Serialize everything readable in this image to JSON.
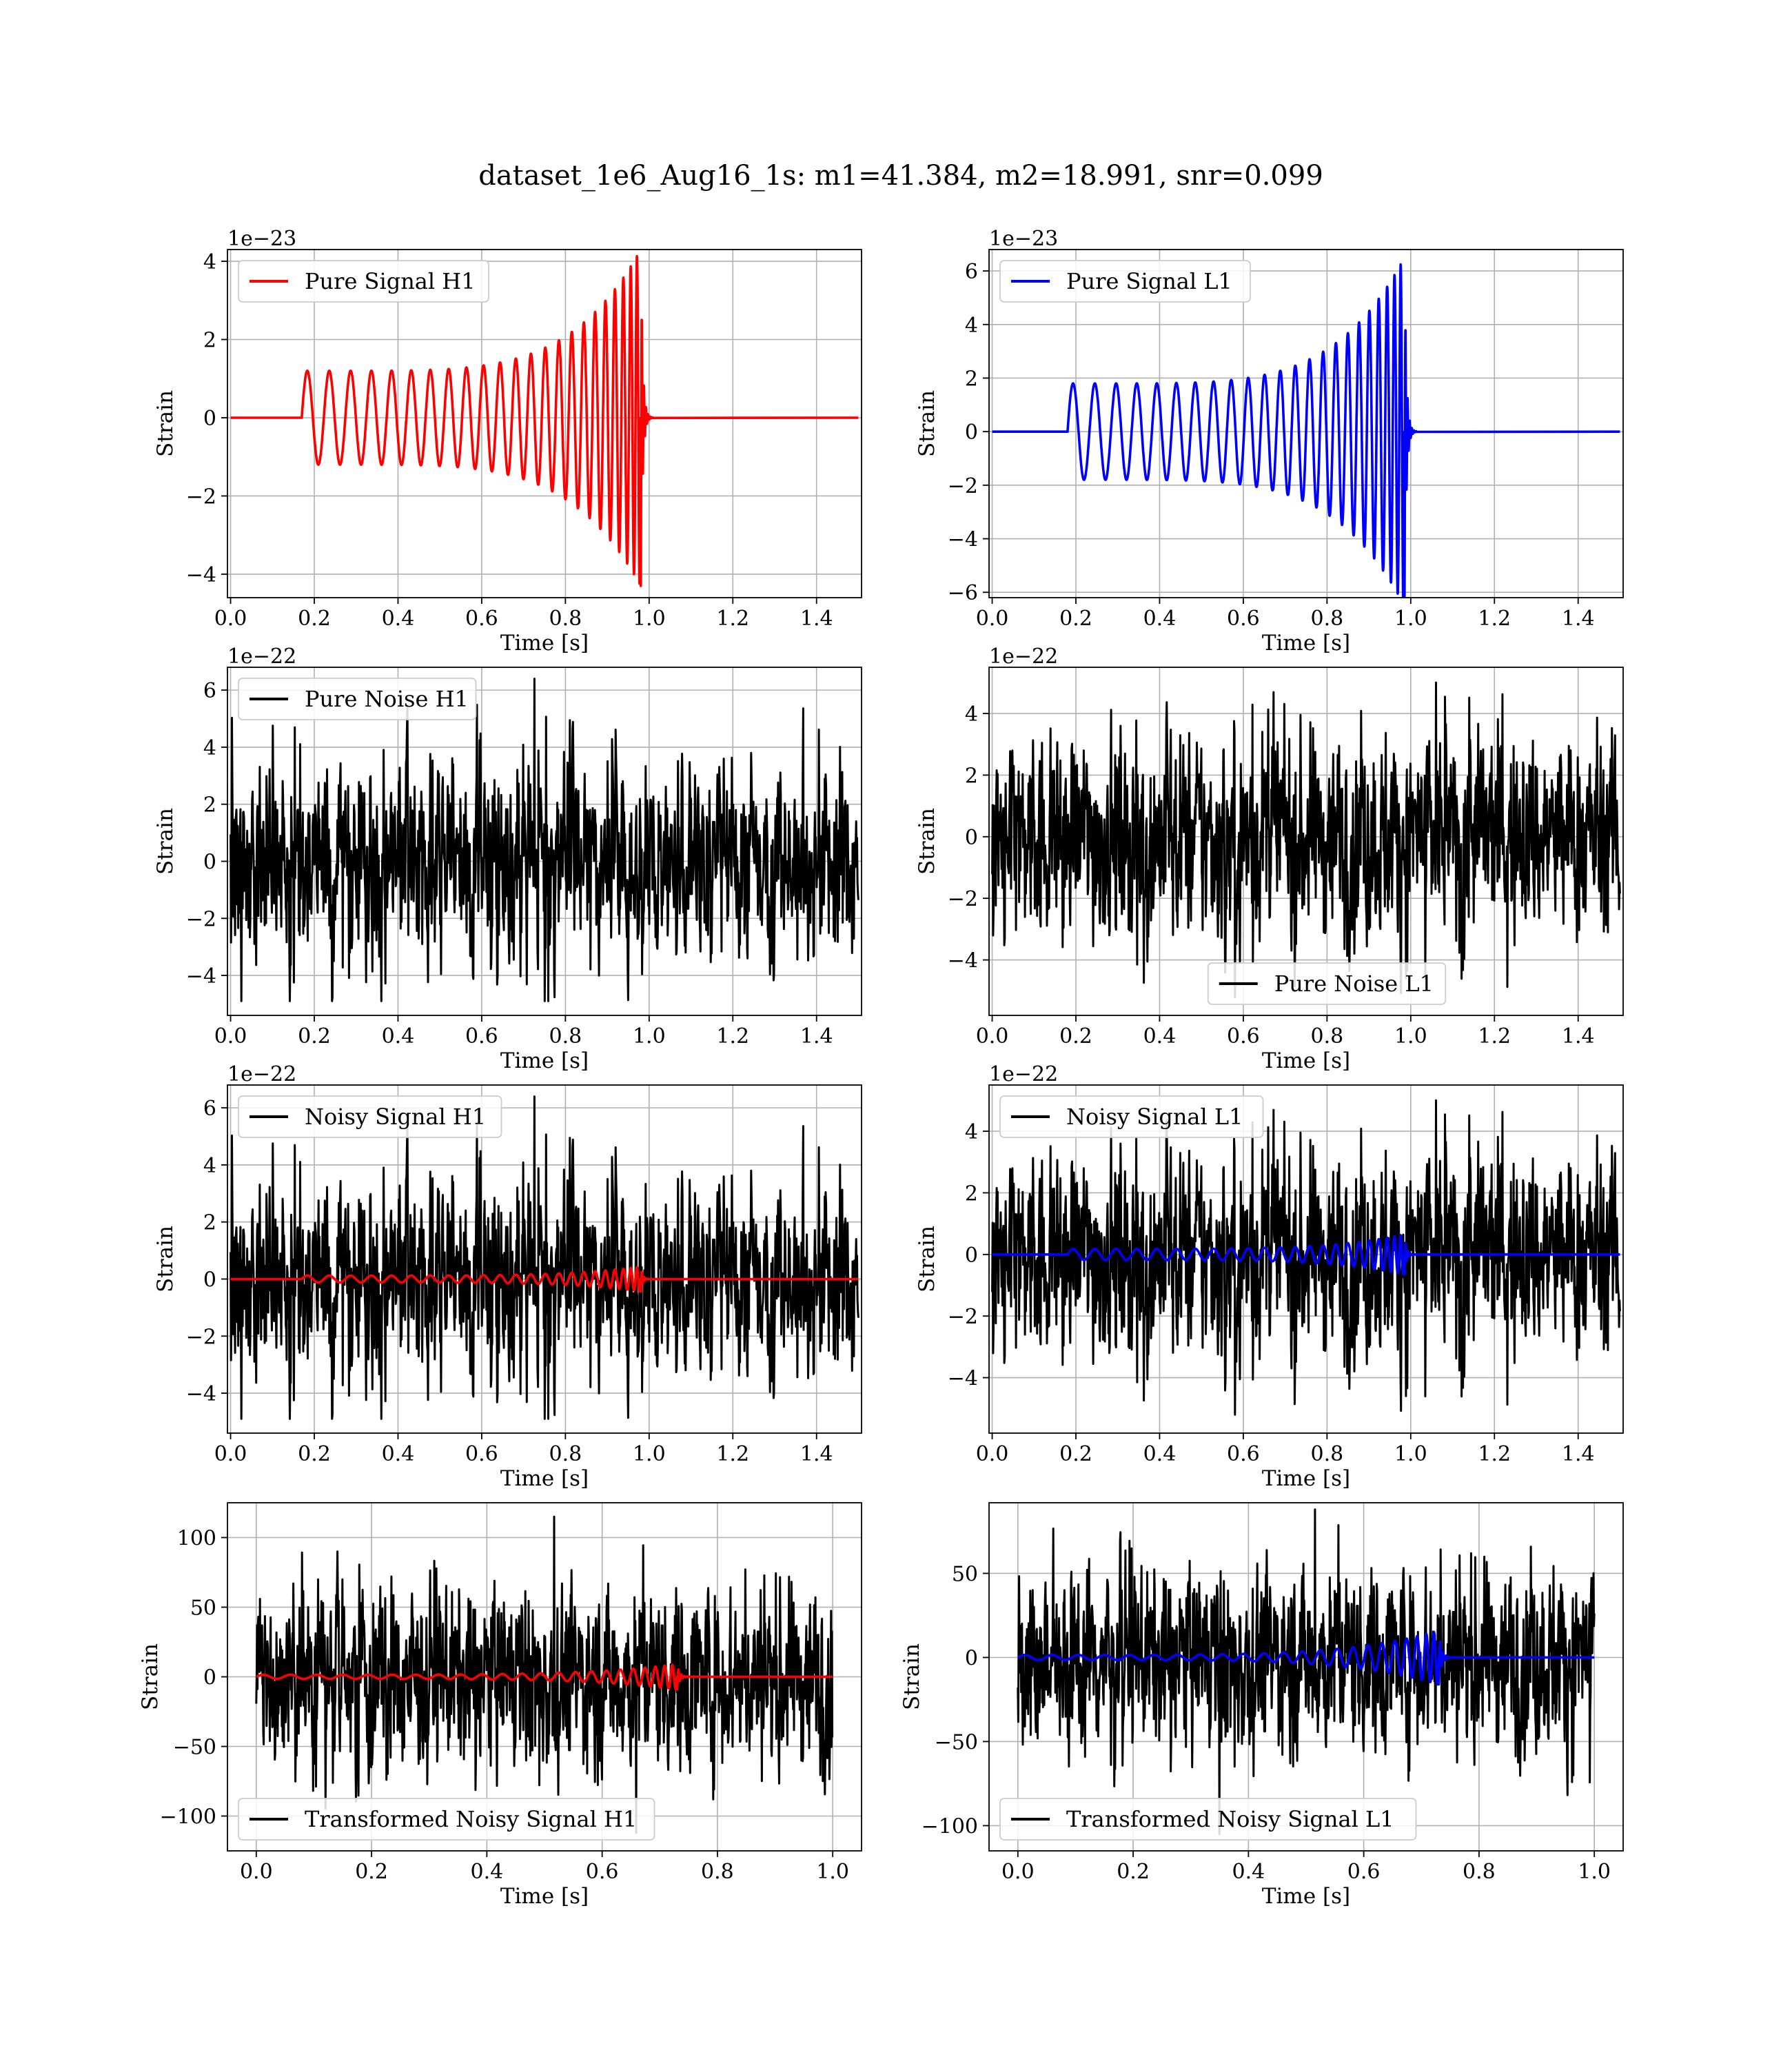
{
  "figure": {
    "title": "dataset_1e6_Aug16_1s: m1=41.384, m2=18.991, snr=0.099"
  },
  "colors": {
    "h1_signal": "#ff0000",
    "l1_signal": "#0000ff",
    "noise": "#000000",
    "grid": "#b0b0b0"
  },
  "chart_data": [
    {
      "id": "pure-signal-h1",
      "type": "line",
      "xlabel": "Time [s]",
      "ylabel": "Strain",
      "offset_text": "1e−23",
      "xlim": [
        -0.0075,
        1.5075
      ],
      "ylim": [
        -4.6,
        4.3
      ],
      "xticks": [
        0.0,
        0.2,
        0.4,
        0.6,
        0.8,
        1.0,
        1.2,
        1.4
      ],
      "yticks": [
        -4,
        -2,
        0,
        2,
        4
      ],
      "grid": true,
      "legend_position": "upper left",
      "series": [
        {
          "name": "Pure Signal H1",
          "color": "#ff0000",
          "kind": "chirp",
          "t_start": 0.17,
          "t_merge": 0.98,
          "t_end": 1.5,
          "amp_start": 1.2,
          "amp_peak": 4.3,
          "cycles": 23
        }
      ]
    },
    {
      "id": "pure-signal-l1",
      "type": "line",
      "xlabel": "Time [s]",
      "ylabel": "Strain",
      "offset_text": "1e−23",
      "xlim": [
        -0.0075,
        1.5075
      ],
      "ylim": [
        -6.2,
        6.8
      ],
      "xticks": [
        0.0,
        0.2,
        0.4,
        0.6,
        0.8,
        1.0,
        1.2,
        1.4
      ],
      "yticks": [
        -6,
        -4,
        -2,
        0,
        2,
        4,
        6
      ],
      "grid": true,
      "legend_position": "upper left",
      "series": [
        {
          "name": "Pure Signal L1",
          "color": "#0000ff",
          "kind": "chirp",
          "t_start": 0.18,
          "t_merge": 0.985,
          "t_end": 1.5,
          "amp_start": 1.8,
          "amp_peak": 6.5,
          "cycles": 23
        }
      ]
    },
    {
      "id": "pure-noise-h1",
      "type": "line",
      "xlabel": "Time [s]",
      "ylabel": "Strain",
      "offset_text": "1e−22",
      "xlim": [
        -0.0075,
        1.5075
      ],
      "ylim": [
        -5.4,
        6.8
      ],
      "xticks": [
        0.0,
        0.2,
        0.4,
        0.6,
        0.8,
        1.0,
        1.2,
        1.4
      ],
      "yticks": [
        -4,
        -2,
        0,
        2,
        4,
        6
      ],
      "grid": true,
      "legend_position": "upper left",
      "series": [
        {
          "name": "Pure Noise H1",
          "color": "#000000",
          "kind": "noise",
          "t_start": 0.0,
          "t_end": 1.5,
          "sigma": 1.6,
          "max": 6.4,
          "min": -4.9,
          "seed": 11
        }
      ]
    },
    {
      "id": "pure-noise-l1",
      "type": "line",
      "xlabel": "Time [s]",
      "ylabel": "Strain",
      "offset_text": "1e−22",
      "xlim": [
        -0.0075,
        1.5075
      ],
      "ylim": [
        -5.8,
        5.5
      ],
      "xticks": [
        0.0,
        0.2,
        0.4,
        0.6,
        0.8,
        1.0,
        1.2,
        1.4
      ],
      "yticks": [
        -4,
        -2,
        0,
        2,
        4
      ],
      "grid": true,
      "legend_position": "lower center",
      "series": [
        {
          "name": "Pure Noise L1",
          "color": "#000000",
          "kind": "noise",
          "t_start": 0.0,
          "t_end": 1.5,
          "sigma": 1.55,
          "max": 5.0,
          "min": -5.2,
          "seed": 23
        }
      ]
    },
    {
      "id": "noisy-signal-h1",
      "type": "line",
      "xlabel": "Time [s]",
      "ylabel": "Strain",
      "offset_text": "1e−22",
      "xlim": [
        -0.0075,
        1.5075
      ],
      "ylim": [
        -5.4,
        6.8
      ],
      "xticks": [
        0.0,
        0.2,
        0.4,
        0.6,
        0.8,
        1.0,
        1.2,
        1.4
      ],
      "yticks": [
        -4,
        -2,
        0,
        2,
        4,
        6
      ],
      "grid": true,
      "legend_position": "upper left",
      "series": [
        {
          "name": "Noisy Signal H1",
          "color": "#000000",
          "kind": "noise",
          "t_start": 0.0,
          "t_end": 1.5,
          "sigma": 1.6,
          "max": 6.4,
          "min": -4.9,
          "seed": 11
        },
        {
          "name": "",
          "color": "#ff0000",
          "kind": "chirp",
          "t_start": 0.17,
          "t_merge": 0.98,
          "t_end": 1.5,
          "amp_start": 0.12,
          "amp_peak": 0.43,
          "cycles": 23
        }
      ]
    },
    {
      "id": "noisy-signal-l1",
      "type": "line",
      "xlabel": "Time [s]",
      "ylabel": "Strain",
      "offset_text": "1e−22",
      "xlim": [
        -0.0075,
        1.5075
      ],
      "ylim": [
        -5.8,
        5.5
      ],
      "xticks": [
        0.0,
        0.2,
        0.4,
        0.6,
        0.8,
        1.0,
        1.2,
        1.4
      ],
      "yticks": [
        -4,
        -2,
        0,
        2,
        4
      ],
      "grid": true,
      "legend_position": "upper left",
      "series": [
        {
          "name": "Noisy Signal L1",
          "color": "#000000",
          "kind": "noise",
          "t_start": 0.0,
          "t_end": 1.5,
          "sigma": 1.55,
          "max": 5.0,
          "min": -5.2,
          "seed": 23
        },
        {
          "name": "",
          "color": "#0000ff",
          "kind": "chirp",
          "t_start": 0.18,
          "t_merge": 0.985,
          "t_end": 1.5,
          "amp_start": 0.18,
          "amp_peak": 0.65,
          "cycles": 23
        }
      ]
    },
    {
      "id": "transformed-noisy-signal-h1",
      "type": "line",
      "xlabel": "Time [s]",
      "ylabel": "Strain",
      "offset_text": "",
      "xlim": [
        -0.05,
        1.05
      ],
      "ylim": [
        -125,
        125
      ],
      "xticks": [
        0.0,
        0.2,
        0.4,
        0.6,
        0.8,
        1.0
      ],
      "yticks": [
        -100,
        -50,
        0,
        50,
        100
      ],
      "grid": true,
      "legend_position": "lower left",
      "series": [
        {
          "name": "Transformed Noisy Signal H1",
          "color": "#000000",
          "kind": "noise",
          "t_start": 0.0,
          "t_end": 1.0,
          "sigma": 30,
          "max": 115,
          "min": -112,
          "seed": 37
        },
        {
          "name": "",
          "color": "#ff0000",
          "kind": "chirp",
          "t_start": 0.0,
          "t_merge": 0.73,
          "t_end": 1.0,
          "amp_start": 1.5,
          "amp_peak": 9,
          "cycles": 23
        }
      ]
    },
    {
      "id": "transformed-noisy-signal-l1",
      "type": "line",
      "xlabel": "Time [s]",
      "ylabel": "Strain",
      "offset_text": "",
      "xlim": [
        -0.05,
        1.05
      ],
      "ylim": [
        -115,
        92
      ],
      "xticks": [
        0.0,
        0.2,
        0.4,
        0.6,
        0.8,
        1.0
      ],
      "yticks": [
        -100,
        -50,
        0,
        50
      ],
      "grid": true,
      "legend_position": "lower left",
      "series": [
        {
          "name": "Transformed Noisy Signal L1",
          "color": "#000000",
          "kind": "noise",
          "t_start": 0.0,
          "t_end": 1.0,
          "sigma": 25,
          "max": 88,
          "min": -105,
          "seed": 53
        },
        {
          "name": "",
          "color": "#0000ff",
          "kind": "chirp",
          "t_start": 0.0,
          "t_merge": 0.73,
          "t_end": 1.0,
          "amp_start": 1.5,
          "amp_peak": 16,
          "cycles": 23
        }
      ]
    }
  ]
}
